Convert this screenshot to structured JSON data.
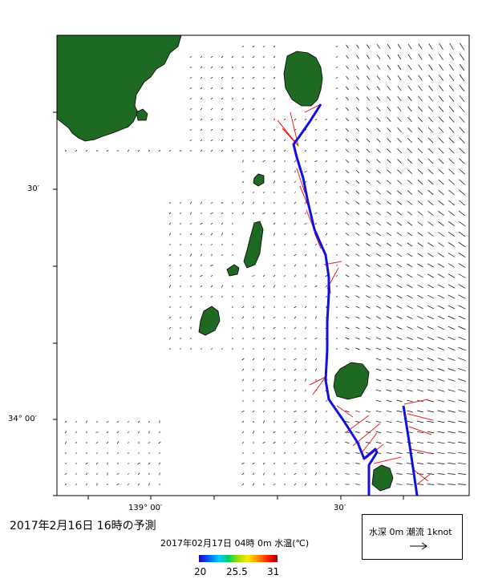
{
  "map": {
    "lat_labels": [
      "30′",
      "34° 00′"
    ],
    "lon_labels": [
      "139° 00′",
      "30′"
    ]
  },
  "footer": {
    "forecast_title": "2017年2月16日  16時の予測",
    "subtitle": "2017年02月17日 04時 0m 水温(℃)",
    "colorbar": {
      "min_label": "20",
      "mid_label": "25.5",
      "max_label": "31",
      "colors": [
        "#2b00b3",
        "#0060ff",
        "#00c8ff",
        "#00d060",
        "#9ee000",
        "#ffe600",
        "#ff8c00",
        "#ff2000",
        "#a00000"
      ]
    }
  },
  "legend": {
    "label": "水深 0m 潮流 1knot",
    "arrow_icon": "right-arrow-icon"
  },
  "colors": {
    "land": "#1f6a22",
    "track": "#1010e0",
    "vector_near_track": "#e82020",
    "vector_field": "#000000"
  }
}
